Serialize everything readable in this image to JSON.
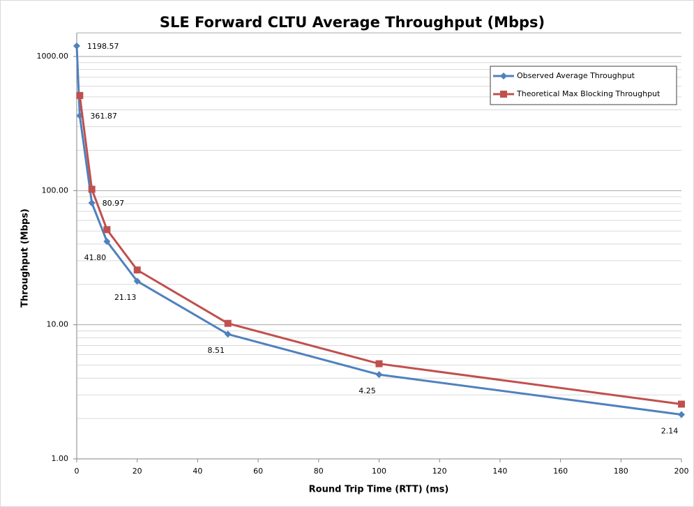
{
  "chart_data": {
    "type": "line",
    "title": "SLE Forward CLTU Average Throughput (Mbps)",
    "x_label": "Round Trip Time (RTT) (ms)",
    "y_label": "Throughput (Mbps)",
    "series": [
      {
        "name": "Observed Average Throughput",
        "color": "#4f81bd",
        "marker": "diamond",
        "x": [
          0,
          1,
          5,
          10,
          20,
          50,
          100,
          200
        ],
        "values": [
          1198.57,
          361.87,
          80.97,
          41.8,
          21.13,
          8.51,
          4.25,
          2.14
        ],
        "value_labels": [
          "1198.57",
          "361.87",
          "80.97",
          "41.80",
          "21.13",
          "8.51",
          "4.25",
          "2.14"
        ]
      },
      {
        "name": "Theoretical Max Blocking Throughput",
        "color": "#c0504d",
        "marker": "square",
        "x": [
          1,
          5,
          10,
          20,
          50,
          100,
          200
        ],
        "values": [
          512,
          102.4,
          51.2,
          25.6,
          10.24,
          5.12,
          2.56
        ]
      }
    ],
    "xlim": [
      0,
      200
    ],
    "xticks": [
      0,
      20,
      40,
      60,
      80,
      100,
      120,
      140,
      160,
      180,
      200
    ],
    "ylim": [
      1,
      1500
    ],
    "y_log": true,
    "yticks": [
      {
        "value": 1,
        "label": "1.00"
      },
      {
        "value": 10,
        "label": "10.00"
      },
      {
        "value": 100,
        "label": "100.00"
      },
      {
        "value": 1000,
        "label": "1000.00"
      }
    ],
    "grid": true,
    "minor_grid": true,
    "legend": "upper right"
  }
}
